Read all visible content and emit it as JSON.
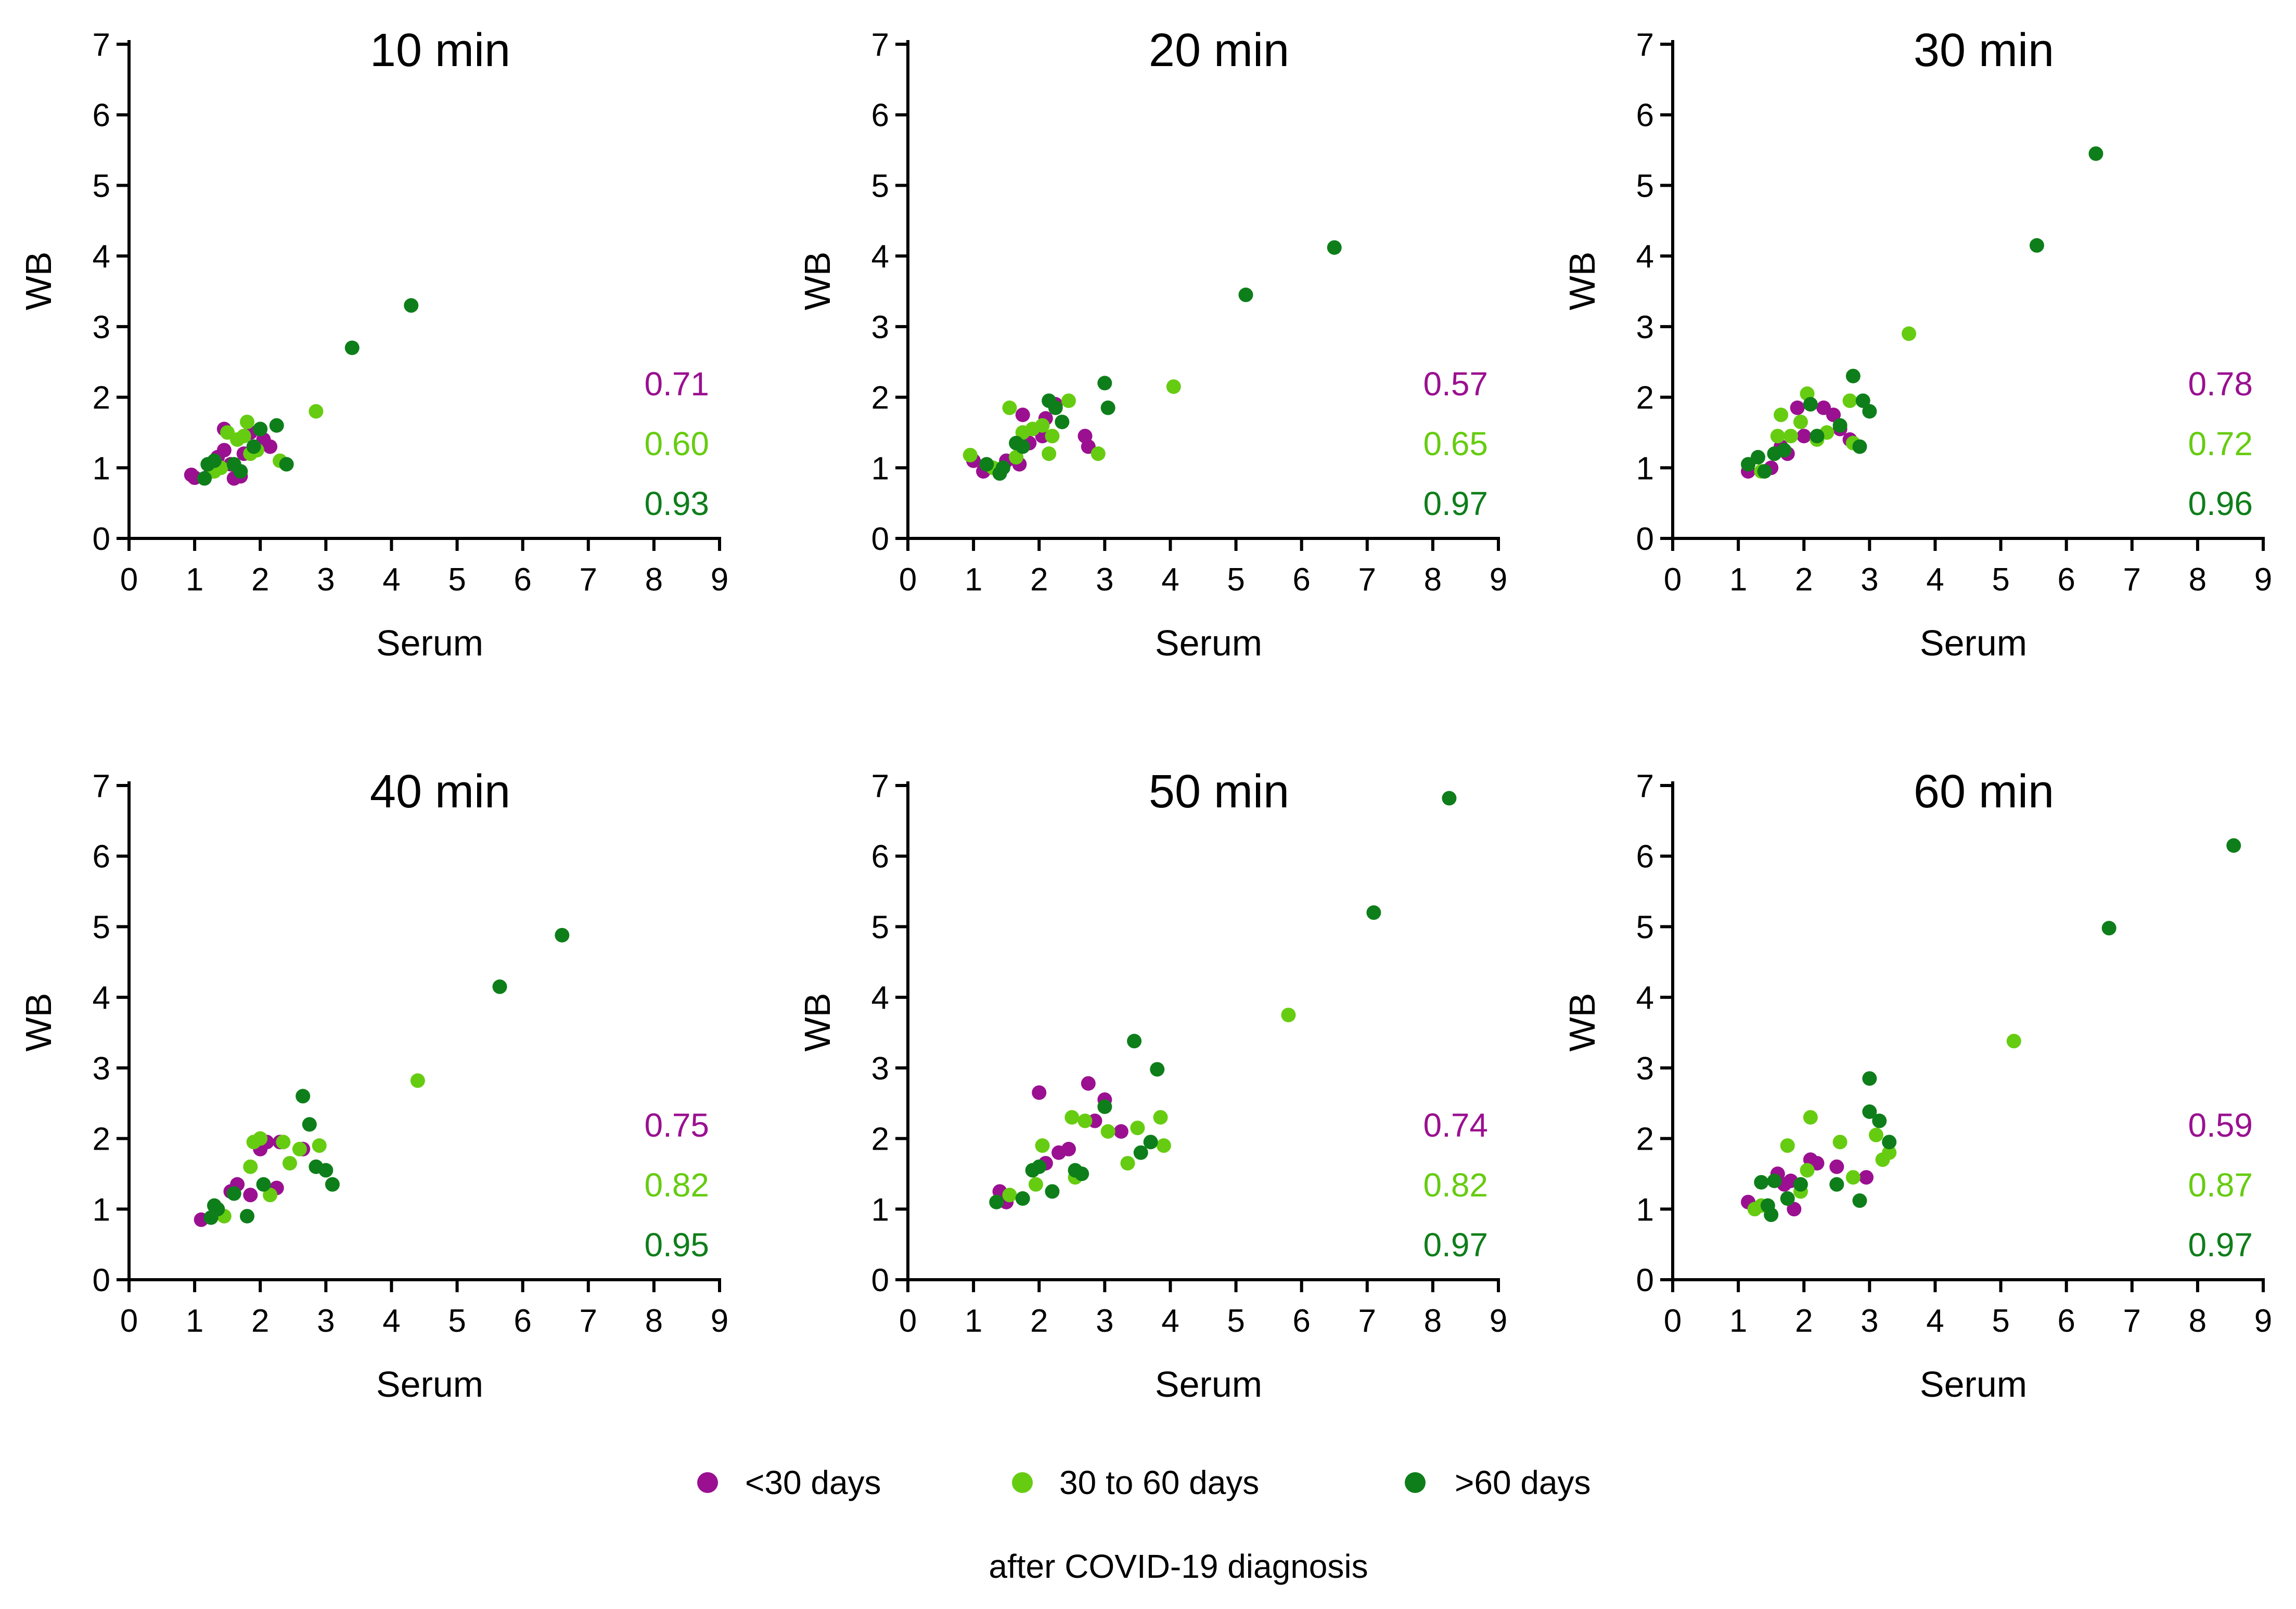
{
  "colors": {
    "lt30": "#9A1090",
    "d30to60": "#66CC11",
    "gt60": "#0E7E1A",
    "axis": "#000000"
  },
  "legend": {
    "items": [
      {
        "key": "lt30",
        "label": "<30 days"
      },
      {
        "key": "d30to60",
        "label": "30 to 60 days"
      },
      {
        "key": "gt60",
        "label": ">60 days"
      }
    ],
    "caption": "after COVID-19  diagnosis"
  },
  "chart_data": [
    {
      "type": "scatter",
      "title": "10 min",
      "xlabel": "Serum",
      "ylabel": "WB",
      "xlim": [
        0,
        9
      ],
      "ylim": [
        0,
        7
      ],
      "xticks": [
        "0",
        "1",
        "2",
        "3",
        "4",
        "5",
        "6",
        "7",
        "8",
        "9"
      ],
      "yticks": [
        "0",
        "1",
        "2",
        "3",
        "4",
        "5",
        "6",
        "7"
      ],
      "correlations": [
        "0.71",
        "0.60",
        "0.93"
      ],
      "series": [
        {
          "key": "lt30",
          "points": [
            [
              0.95,
              0.9
            ],
            [
              1.0,
              0.86
            ],
            [
              1.25,
              0.95
            ],
            [
              1.35,
              1.15
            ],
            [
              1.45,
              1.25
            ],
            [
              1.45,
              1.55
            ],
            [
              1.55,
              1.05
            ],
            [
              1.6,
              0.85
            ],
            [
              1.7,
              0.88
            ],
            [
              1.75,
              1.2
            ],
            [
              1.85,
              1.5
            ],
            [
              2.05,
              1.4
            ],
            [
              2.15,
              1.3
            ]
          ]
        },
        {
          "key": "d30to60",
          "points": [
            [
              1.3,
              0.95
            ],
            [
              1.4,
              1.0
            ],
            [
              1.5,
              1.5
            ],
            [
              1.65,
              1.4
            ],
            [
              1.75,
              1.45
            ],
            [
              1.8,
              1.65
            ],
            [
              1.85,
              1.2
            ],
            [
              1.95,
              1.25
            ],
            [
              2.3,
              1.1
            ],
            [
              2.85,
              1.8
            ]
          ]
        },
        {
          "key": "gt60",
          "points": [
            [
              1.15,
              0.85
            ],
            [
              1.2,
              1.05
            ],
            [
              1.3,
              1.1
            ],
            [
              1.6,
              1.05
            ],
            [
              1.7,
              0.95
            ],
            [
              1.9,
              1.3
            ],
            [
              2.0,
              1.55
            ],
            [
              2.25,
              1.6
            ],
            [
              2.4,
              1.05
            ],
            [
              3.4,
              2.7
            ],
            [
              4.3,
              3.3
            ]
          ]
        }
      ]
    },
    {
      "type": "scatter",
      "title": "20 min",
      "xlabel": "Serum",
      "ylabel": "WB",
      "xlim": [
        0,
        9
      ],
      "ylim": [
        0,
        7
      ],
      "xticks": [
        "0",
        "1",
        "2",
        "3",
        "4",
        "5",
        "6",
        "7",
        "8",
        "9"
      ],
      "yticks": [
        "0",
        "1",
        "2",
        "3",
        "4",
        "5",
        "6",
        "7"
      ],
      "correlations": [
        "0.57",
        "0.65",
        "0.97"
      ],
      "series": [
        {
          "key": "lt30",
          "points": [
            [
              1.0,
              1.1
            ],
            [
              1.15,
              0.95
            ],
            [
              1.5,
              1.1
            ],
            [
              1.7,
              1.05
            ],
            [
              1.75,
              1.75
            ],
            [
              1.85,
              1.35
            ],
            [
              2.05,
              1.45
            ],
            [
              2.1,
              1.7
            ],
            [
              2.25,
              1.9
            ],
            [
              2.7,
              1.45
            ],
            [
              2.75,
              1.3
            ]
          ]
        },
        {
          "key": "d30to60",
          "points": [
            [
              0.95,
              1.18
            ],
            [
              1.3,
              1.0
            ],
            [
              1.55,
              1.85
            ],
            [
              1.65,
              1.15
            ],
            [
              1.75,
              1.5
            ],
            [
              1.9,
              1.55
            ],
            [
              2.05,
              1.6
            ],
            [
              2.15,
              1.2
            ],
            [
              2.2,
              1.45
            ],
            [
              2.45,
              1.95
            ],
            [
              2.9,
              1.2
            ],
            [
              4.05,
              2.15
            ]
          ]
        },
        {
          "key": "gt60",
          "points": [
            [
              1.2,
              1.05
            ],
            [
              1.4,
              0.92
            ],
            [
              1.45,
              1.0
            ],
            [
              1.65,
              1.35
            ],
            [
              1.75,
              1.3
            ],
            [
              2.15,
              1.95
            ],
            [
              2.25,
              1.85
            ],
            [
              2.35,
              1.65
            ],
            [
              3.0,
              2.2
            ],
            [
              3.05,
              1.85
            ],
            [
              5.15,
              3.45
            ],
            [
              6.5,
              4.12
            ]
          ]
        }
      ]
    },
    {
      "type": "scatter",
      "title": "30 min",
      "xlabel": "Serum",
      "ylabel": "WB",
      "xlim": [
        0,
        9
      ],
      "ylim": [
        0,
        7
      ],
      "xticks": [
        "0",
        "1",
        "2",
        "3",
        "4",
        "5",
        "6",
        "7",
        "8",
        "9"
      ],
      "yticks": [
        "0",
        "1",
        "2",
        "3",
        "4",
        "5",
        "6",
        "7"
      ],
      "correlations": [
        "0.78",
        "0.72",
        "0.96"
      ],
      "series": [
        {
          "key": "lt30",
          "points": [
            [
              1.15,
              0.95
            ],
            [
              1.5,
              1.0
            ],
            [
              1.65,
              1.3
            ],
            [
              1.75,
              1.2
            ],
            [
              1.9,
              1.85
            ],
            [
              2.0,
              1.45
            ],
            [
              2.3,
              1.85
            ],
            [
              2.45,
              1.75
            ],
            [
              2.55,
              1.55
            ],
            [
              2.7,
              1.4
            ]
          ]
        },
        {
          "key": "d30to60",
          "points": [
            [
              1.35,
              0.95
            ],
            [
              1.55,
              1.2
            ],
            [
              1.6,
              1.45
            ],
            [
              1.65,
              1.75
            ],
            [
              1.8,
              1.45
            ],
            [
              1.95,
              1.65
            ],
            [
              2.05,
              2.05
            ],
            [
              2.2,
              1.4
            ],
            [
              2.35,
              1.5
            ],
            [
              2.7,
              1.95
            ],
            [
              2.75,
              1.35
            ],
            [
              3.6,
              2.9
            ]
          ]
        },
        {
          "key": "gt60",
          "points": [
            [
              1.15,
              1.05
            ],
            [
              1.3,
              1.15
            ],
            [
              1.4,
              0.95
            ],
            [
              1.55,
              1.2
            ],
            [
              1.7,
              1.25
            ],
            [
              2.1,
              1.9
            ],
            [
              2.2,
              1.45
            ],
            [
              2.55,
              1.6
            ],
            [
              2.75,
              2.3
            ],
            [
              2.85,
              1.3
            ],
            [
              2.9,
              1.95
            ],
            [
              3.0,
              1.8
            ],
            [
              5.55,
              4.15
            ],
            [
              6.45,
              5.45
            ]
          ]
        }
      ]
    },
    {
      "type": "scatter",
      "title": "40 min",
      "xlabel": "Serum",
      "ylabel": "WB",
      "xlim": [
        0,
        9
      ],
      "ylim": [
        0,
        7
      ],
      "xticks": [
        "0",
        "1",
        "2",
        "3",
        "4",
        "5",
        "6",
        "7",
        "8",
        "9"
      ],
      "yticks": [
        "0",
        "1",
        "2",
        "3",
        "4",
        "5",
        "6",
        "7"
      ],
      "correlations": [
        "0.75",
        "0.82",
        "0.95"
      ],
      "series": [
        {
          "key": "lt30",
          "points": [
            [
              1.1,
              0.85
            ],
            [
              1.55,
              1.25
            ],
            [
              1.65,
              1.35
            ],
            [
              1.85,
              1.2
            ],
            [
              2.0,
              1.85
            ],
            [
              2.1,
              1.95
            ],
            [
              2.25,
              1.3
            ],
            [
              2.3,
              1.95
            ],
            [
              2.65,
              1.85
            ]
          ]
        },
        {
          "key": "d30to60",
          "points": [
            [
              1.45,
              0.9
            ],
            [
              1.85,
              1.6
            ],
            [
              1.9,
              1.95
            ],
            [
              2.0,
              2.0
            ],
            [
              2.15,
              1.2
            ],
            [
              2.35,
              1.95
            ],
            [
              2.45,
              1.65
            ],
            [
              2.6,
              1.85
            ],
            [
              2.9,
              1.9
            ],
            [
              4.4,
              2.82
            ]
          ]
        },
        {
          "key": "gt60",
          "points": [
            [
              1.25,
              0.88
            ],
            [
              1.3,
              1.05
            ],
            [
              1.35,
              1.0
            ],
            [
              1.6,
              1.22
            ],
            [
              1.8,
              0.9
            ],
            [
              2.05,
              1.35
            ],
            [
              2.65,
              2.6
            ],
            [
              2.75,
              2.2
            ],
            [
              2.85,
              1.6
            ],
            [
              3.0,
              1.55
            ],
            [
              3.1,
              1.35
            ],
            [
              5.65,
              4.15
            ],
            [
              6.6,
              4.88
            ]
          ]
        }
      ]
    },
    {
      "type": "scatter",
      "title": "50 min",
      "xlabel": "Serum",
      "ylabel": "WB",
      "xlim": [
        0,
        9
      ],
      "ylim": [
        0,
        7
      ],
      "xticks": [
        "0",
        "1",
        "2",
        "3",
        "4",
        "5",
        "6",
        "7",
        "8",
        "9"
      ],
      "yticks": [
        "0",
        "1",
        "2",
        "3",
        "4",
        "5",
        "6",
        "7"
      ],
      "correlations": [
        "0.74",
        "0.82",
        "0.97"
      ],
      "series": [
        {
          "key": "lt30",
          "points": [
            [
              1.4,
              1.25
            ],
            [
              1.5,
              1.1
            ],
            [
              2.0,
              2.65
            ],
            [
              2.1,
              1.65
            ],
            [
              2.3,
              1.8
            ],
            [
              2.45,
              1.85
            ],
            [
              2.75,
              2.78
            ],
            [
              2.85,
              2.25
            ],
            [
              3.0,
              2.55
            ],
            [
              3.25,
              2.1
            ]
          ]
        },
        {
          "key": "d30to60",
          "points": [
            [
              1.55,
              1.2
            ],
            [
              1.95,
              1.35
            ],
            [
              2.05,
              1.9
            ],
            [
              2.5,
              2.3
            ],
            [
              2.55,
              1.45
            ],
            [
              2.7,
              2.25
            ],
            [
              3.05,
              2.1
            ],
            [
              3.35,
              1.65
            ],
            [
              3.5,
              2.15
            ],
            [
              3.85,
              2.3
            ],
            [
              3.9,
              1.9
            ],
            [
              5.8,
              3.75
            ]
          ]
        },
        {
          "key": "gt60",
          "points": [
            [
              1.35,
              1.1
            ],
            [
              1.75,
              1.15
            ],
            [
              1.9,
              1.55
            ],
            [
              2.0,
              1.6
            ],
            [
              2.2,
              1.25
            ],
            [
              2.55,
              1.55
            ],
            [
              2.65,
              1.5
            ],
            [
              3.0,
              2.45
            ],
            [
              3.45,
              3.38
            ],
            [
              3.55,
              1.8
            ],
            [
              3.7,
              1.95
            ],
            [
              3.8,
              2.98
            ],
            [
              7.1,
              5.2
            ],
            [
              8.25,
              6.82
            ]
          ]
        }
      ]
    },
    {
      "type": "scatter",
      "title": "60 min",
      "xlabel": "Serum",
      "ylabel": "WB",
      "xlim": [
        0,
        9
      ],
      "ylim": [
        0,
        7
      ],
      "xticks": [
        "0",
        "1",
        "2",
        "3",
        "4",
        "5",
        "6",
        "7",
        "8",
        "9"
      ],
      "yticks": [
        "0",
        "1",
        "2",
        "3",
        "4",
        "5",
        "6",
        "7"
      ],
      "correlations": [
        "0.59",
        "0.87",
        "0.97"
      ],
      "series": [
        {
          "key": "lt30",
          "points": [
            [
              1.15,
              1.1
            ],
            [
              1.6,
              1.5
            ],
            [
              1.7,
              1.35
            ],
            [
              1.8,
              1.4
            ],
            [
              1.85,
              1.0
            ],
            [
              2.1,
              1.7
            ],
            [
              2.2,
              1.65
            ],
            [
              2.5,
              1.6
            ],
            [
              2.95,
              1.45
            ]
          ]
        },
        {
          "key": "d30to60",
          "points": [
            [
              1.25,
              1.0
            ],
            [
              1.35,
              1.05
            ],
            [
              1.75,
              1.9
            ],
            [
              1.95,
              1.25
            ],
            [
              2.05,
              1.55
            ],
            [
              2.1,
              2.3
            ],
            [
              2.55,
              1.95
            ],
            [
              2.75,
              1.45
            ],
            [
              3.1,
              2.05
            ],
            [
              3.2,
              1.7
            ],
            [
              3.3,
              1.8
            ],
            [
              5.2,
              3.38
            ]
          ]
        },
        {
          "key": "gt60",
          "points": [
            [
              1.35,
              1.38
            ],
            [
              1.45,
              1.05
            ],
            [
              1.5,
              0.92
            ],
            [
              1.55,
              1.4
            ],
            [
              1.75,
              1.15
            ],
            [
              1.95,
              1.35
            ],
            [
              2.5,
              1.35
            ],
            [
              2.85,
              1.12
            ],
            [
              3.0,
              2.85
            ],
            [
              3.0,
              2.38
            ],
            [
              3.15,
              2.25
            ],
            [
              3.3,
              1.95
            ],
            [
              6.65,
              4.98
            ],
            [
              8.55,
              6.15
            ]
          ]
        }
      ]
    }
  ]
}
